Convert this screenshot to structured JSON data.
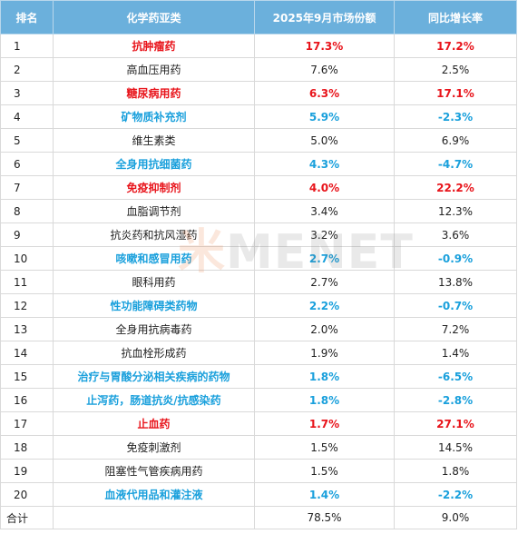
{
  "header": {
    "rank": "排名",
    "category": "化学药亚类",
    "share": "2025年9月市场份额",
    "yoy": "同比增长率"
  },
  "rows": [
    {
      "rank": "1",
      "category": "抗肿瘤药",
      "share": "17.3%",
      "yoy": "17.2%",
      "style": "red"
    },
    {
      "rank": "2",
      "category": "高血压用药",
      "share": "7.6%",
      "yoy": "2.5%",
      "style": "plain"
    },
    {
      "rank": "3",
      "category": "糖尿病用药",
      "share": "6.3%",
      "yoy": "17.1%",
      "style": "red"
    },
    {
      "rank": "4",
      "category": "矿物质补充剂",
      "share": "5.9%",
      "yoy": "-2.3%",
      "style": "blue"
    },
    {
      "rank": "5",
      "category": "维生素类",
      "share": "5.0%",
      "yoy": "6.9%",
      "style": "plain"
    },
    {
      "rank": "6",
      "category": "全身用抗细菌药",
      "share": "4.3%",
      "yoy": "-4.7%",
      "style": "blue"
    },
    {
      "rank": "7",
      "category": "免疫抑制剂",
      "share": "4.0%",
      "yoy": "22.2%",
      "style": "red"
    },
    {
      "rank": "8",
      "category": "血脂调节剂",
      "share": "3.4%",
      "yoy": "12.3%",
      "style": "plain"
    },
    {
      "rank": "9",
      "category": "抗炎药和抗风湿药",
      "share": "3.2%",
      "yoy": "3.6%",
      "style": "plain"
    },
    {
      "rank": "10",
      "category": "咳嗽和感冒用药",
      "share": "2.7%",
      "yoy": "-0.9%",
      "style": "blue"
    },
    {
      "rank": "11",
      "category": "眼科用药",
      "share": "2.7%",
      "yoy": "13.8%",
      "style": "plain"
    },
    {
      "rank": "12",
      "category": "性功能障碍类药物",
      "share": "2.2%",
      "yoy": "-0.7%",
      "style": "blue"
    },
    {
      "rank": "13",
      "category": "全身用抗病毒药",
      "share": "2.0%",
      "yoy": "7.2%",
      "style": "plain"
    },
    {
      "rank": "14",
      "category": "抗血栓形成药",
      "share": "1.9%",
      "yoy": "1.4%",
      "style": "plain"
    },
    {
      "rank": "15",
      "category": "治疗与胃酸分泌相关疾病的药物",
      "share": "1.8%",
      "yoy": "-6.5%",
      "style": "blue"
    },
    {
      "rank": "16",
      "category": "止泻药，肠道抗炎/抗感染药",
      "share": "1.8%",
      "yoy": "-2.8%",
      "style": "blue"
    },
    {
      "rank": "17",
      "category": "止血药",
      "share": "1.7%",
      "yoy": "27.1%",
      "style": "red"
    },
    {
      "rank": "18",
      "category": "免疫刺激剂",
      "share": "1.5%",
      "yoy": "14.5%",
      "style": "plain"
    },
    {
      "rank": "19",
      "category": "阻塞性气管疾病用药",
      "share": "1.5%",
      "yoy": "1.8%",
      "style": "plain"
    },
    {
      "rank": "20",
      "category": "血液代用品和灌注液",
      "share": "1.4%",
      "yoy": "-2.2%",
      "style": "blue"
    }
  ],
  "total": {
    "label": "合计",
    "share": "78.5%",
    "yoy": "9.0%"
  },
  "watermark": {
    "part1": "米",
    "part2": "MENET"
  },
  "colors": {
    "header_bg": "#6bb0dc",
    "highlight_red": "#e8141b",
    "highlight_blue": "#1aa0dc"
  }
}
